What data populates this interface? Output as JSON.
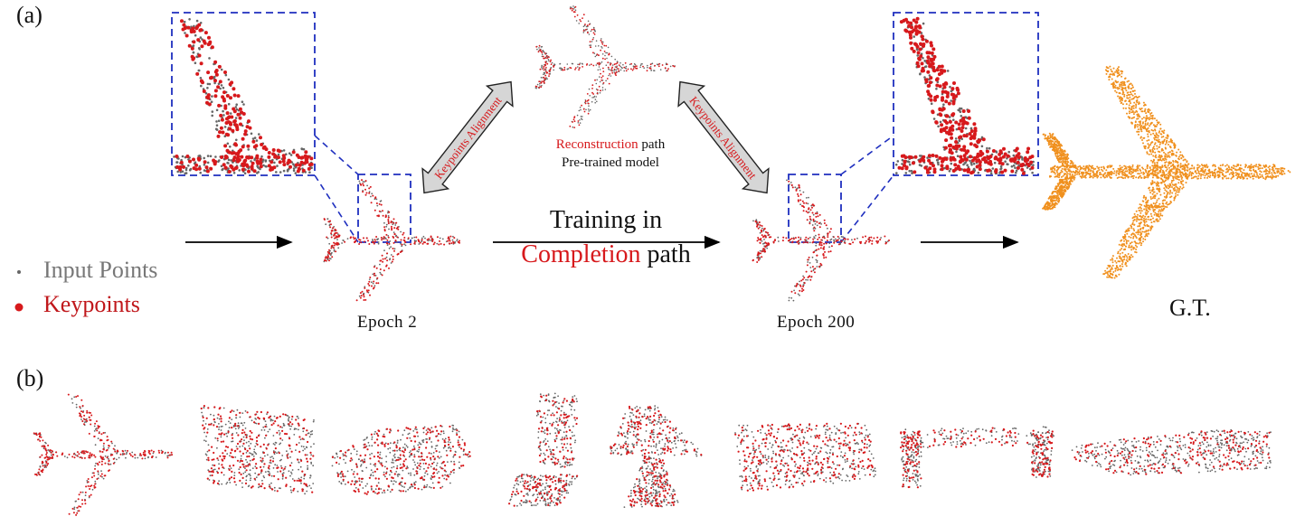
{
  "panel_a_label": "(a)",
  "panel_b_label": "(b)",
  "legend": {
    "input_points": "Input Points",
    "keypoints": "Keypoints"
  },
  "epochs": {
    "left": "Epoch 2",
    "right": "Epoch 200"
  },
  "gt_label": "G.T.",
  "reconstruction": {
    "word": "Reconstruction",
    "suffix": "path",
    "line2": "Pre-trained model"
  },
  "training": {
    "line1": "Training in",
    "word": "Completion",
    "suffix": "path"
  },
  "alignment_label": "Keypoints Alignment",
  "colors": {
    "input_points": "#666666",
    "keypoints": "#d7191c",
    "ground_truth": "#f0901e",
    "zoom_box": "#1f2fbf",
    "arrow_fill": "#d6d6d6"
  },
  "panel_b_objects": [
    "airplane-icon",
    "cabinet-icon",
    "car-icon",
    "chair-icon",
    "lamp-icon",
    "sofa-icon",
    "table-icon",
    "watercraft-icon"
  ]
}
